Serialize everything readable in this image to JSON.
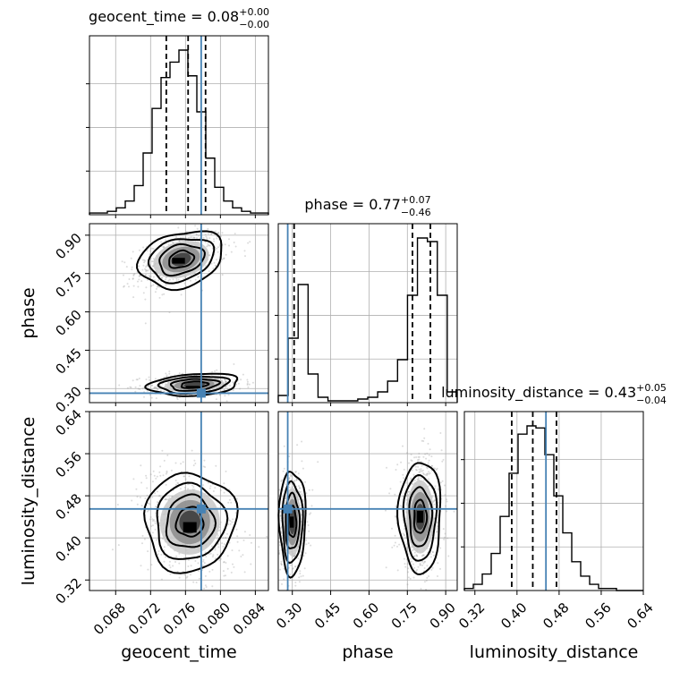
{
  "chart_data": {
    "type": "corner",
    "parameters": [
      {
        "name": "geocent_time",
        "label": "geocent_time",
        "title": {
          "text": "geocent_time = 0.08",
          "plus": "+0.00",
          "minus": "−0.00"
        },
        "range": [
          0.065,
          0.0855
        ],
        "ticks": [
          0.068,
          0.072,
          0.076,
          0.08,
          0.084
        ],
        "tick_labels": [
          "0.068",
          "0.072",
          "0.076",
          "0.080",
          "0.084"
        ],
        "hist_counts": [
          1,
          1,
          2,
          4,
          8,
          17,
          36,
          62,
          80,
          89,
          96,
          81,
          60,
          33,
          16,
          8,
          4,
          2,
          1,
          1
        ],
        "quantiles": [
          0.0738,
          0.0763,
          0.0783
        ],
        "truth": 0.0778
      },
      {
        "name": "phase",
        "label": "phase",
        "title": {
          "text": "phase = 0.77",
          "plus": "+0.07",
          "minus": "−0.46"
        },
        "range": [
          0.245,
          0.945
        ],
        "ticks": [
          0.3,
          0.45,
          0.6,
          0.75,
          0.9
        ],
        "tick_labels": [
          "0.30",
          "0.45",
          "0.60",
          "0.75",
          "0.90"
        ],
        "hist_counts": [
          4,
          36,
          66,
          16,
          3,
          1,
          1,
          1,
          2,
          3,
          6,
          12,
          24,
          60,
          92,
          90,
          60,
          6
        ],
        "quantiles": [
          0.307,
          0.77,
          0.84
        ],
        "truth": 0.282
      },
      {
        "name": "luminosity_distance",
        "label": "luminosity_distance",
        "title": {
          "text": "luminosity_distance = 0.43",
          "plus": "+0.05",
          "minus": "−0.04"
        },
        "range": [
          0.3,
          0.64
        ],
        "ticks": [
          0.32,
          0.4,
          0.48,
          0.56,
          0.64
        ],
        "tick_labels": [
          "0.32",
          "0.40",
          "0.48",
          "0.56",
          "0.64"
        ],
        "hist_counts": [
          1,
          3,
          8,
          18,
          36,
          57,
          76,
          80,
          79,
          66,
          46,
          28,
          14,
          7,
          3,
          1,
          1,
          0,
          0,
          0
        ],
        "quantiles": [
          0.39,
          0.43,
          0.475
        ],
        "truth": 0.455
      }
    ],
    "pairs": [
      {
        "x": "geocent_time",
        "y": "phase",
        "modes": [
          {
            "cx": 0.0755,
            "cy": 0.805,
            "sx": 0.0021,
            "sy": 0.045,
            "rho": 0.45,
            "weight": 1.0,
            "peak": [
              0.0752,
              0.8
            ]
          },
          {
            "cx": 0.077,
            "cy": 0.315,
            "sx": 0.0022,
            "sy": 0.018,
            "rho": 0.1,
            "weight": 0.8,
            "peak": [
              0.0768,
              0.306
            ]
          }
        ]
      },
      {
        "x": "geocent_time",
        "y": "luminosity_distance",
        "modes": [
          {
            "cx": 0.0765,
            "cy": 0.43,
            "sx": 0.0022,
            "sy": 0.04,
            "rho": -0.3,
            "weight": 1.0,
            "peak": [
              0.0765,
              0.42
            ]
          }
        ]
      },
      {
        "x": "phase",
        "y": "luminosity_distance",
        "modes": [
          {
            "cx": 0.3,
            "cy": 0.43,
            "sx": 0.022,
            "sy": 0.042,
            "rho": 0.0,
            "weight": 0.85,
            "peak": [
              0.298,
              0.43
            ]
          },
          {
            "cx": 0.8,
            "cy": 0.44,
            "sx": 0.035,
            "sy": 0.045,
            "rho": 0.0,
            "weight": 1.0,
            "peak": [
              0.8,
              0.44
            ]
          }
        ]
      }
    ],
    "grid": true,
    "truth_color": "#4682b4"
  }
}
